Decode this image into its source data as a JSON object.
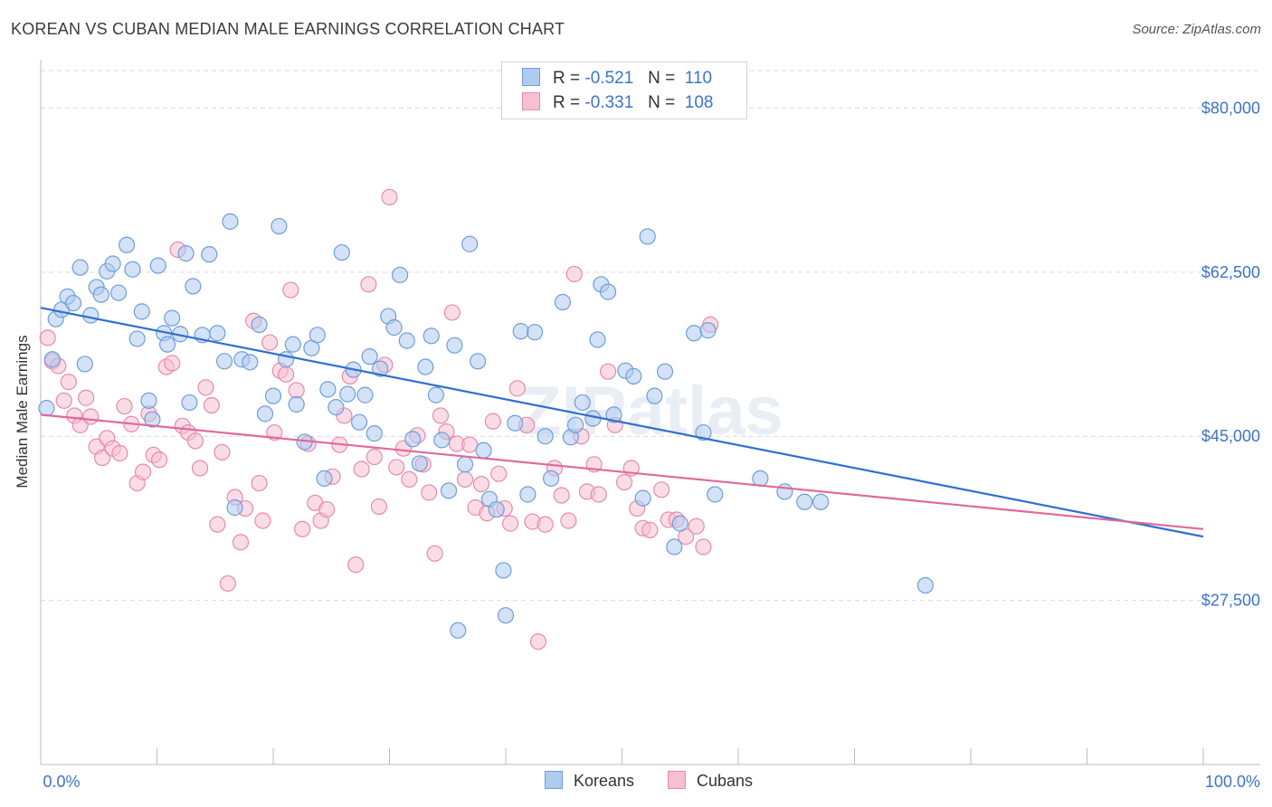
{
  "title": "KOREAN VS CUBAN MEDIAN MALE EARNINGS CORRELATION CHART",
  "source": "Source: ZipAtlas.com",
  "watermark": "ZIPatlas",
  "legend": {
    "rows": [
      {
        "r_label": "R =",
        "r_value": "-0.521",
        "n_label": "N =",
        "n_value": "110"
      },
      {
        "r_label": "R =",
        "r_value": "-0.331",
        "n_label": "N =",
        "n_value": "108"
      }
    ]
  },
  "bottom_legend": {
    "koreans": "Koreans",
    "cubans": "Cubans"
  },
  "colors": {
    "koreans_fill": "#aecbf0",
    "koreans_stroke": "#6f9ed8",
    "koreans_line": "#2f6fd1",
    "cubans_fill": "#f6c0d2",
    "cubans_stroke": "#e98aab",
    "cubans_line": "#e0689a",
    "tick_label": "#3d74c9",
    "grid": "#d9d9d9"
  },
  "chart_data": {
    "type": "scatter",
    "title": "KOREAN VS CUBAN MEDIAN MALE EARNINGS CORRELATION CHART",
    "xlabel": "",
    "ylabel": "Median Male Earnings",
    "xlim": [
      0,
      100
    ],
    "ylim": [
      10000,
      84000
    ],
    "x_tick_labels": [
      "0.0%",
      "100.0%"
    ],
    "y_ticks": [
      {
        "value": 27500,
        "label": "$27,500"
      },
      {
        "value": 45000,
        "label": "$45,000"
      },
      {
        "value": 62500,
        "label": "$62,500"
      },
      {
        "value": 80000,
        "label": "$80,000"
      }
    ],
    "grid": true,
    "legend_position": "top-center",
    "series": [
      {
        "name": "Koreans",
        "r": -0.521,
        "n": 110,
        "trend": {
          "x": [
            0,
            100
          ],
          "y": [
            58700,
            34300
          ]
        },
        "points": [
          [
            0.5,
            48000
          ],
          [
            1.0,
            53200
          ],
          [
            1.3,
            57500
          ],
          [
            1.8,
            58500
          ],
          [
            2.3,
            59900
          ],
          [
            2.8,
            59200
          ],
          [
            3.4,
            63000
          ],
          [
            3.8,
            52700
          ],
          [
            4.3,
            57900
          ],
          [
            4.8,
            60900
          ],
          [
            5.2,
            60100
          ],
          [
            5.7,
            62600
          ],
          [
            6.2,
            63400
          ],
          [
            6.7,
            60300
          ],
          [
            7.4,
            65400
          ],
          [
            7.9,
            62800
          ],
          [
            8.3,
            55400
          ],
          [
            8.7,
            58300
          ],
          [
            9.3,
            48800
          ],
          [
            9.6,
            46800
          ],
          [
            10.1,
            63200
          ],
          [
            10.6,
            56000
          ],
          [
            10.9,
            54800
          ],
          [
            11.3,
            57600
          ],
          [
            12.0,
            55900
          ],
          [
            12.5,
            64500
          ],
          [
            12.8,
            48600
          ],
          [
            13.1,
            61000
          ],
          [
            13.9,
            55800
          ],
          [
            14.5,
            64400
          ],
          [
            15.2,
            56000
          ],
          [
            15.8,
            53000
          ],
          [
            16.3,
            67900
          ],
          [
            16.7,
            37400
          ],
          [
            17.3,
            53200
          ],
          [
            18.0,
            52900
          ],
          [
            18.8,
            56900
          ],
          [
            19.3,
            47400
          ],
          [
            20.0,
            49300
          ],
          [
            20.5,
            67400
          ],
          [
            21.1,
            53200
          ],
          [
            21.7,
            54800
          ],
          [
            22.0,
            48400
          ],
          [
            22.7,
            44400
          ],
          [
            23.3,
            54400
          ],
          [
            23.8,
            55800
          ],
          [
            24.4,
            40500
          ],
          [
            24.7,
            50000
          ],
          [
            25.4,
            48100
          ],
          [
            25.9,
            64600
          ],
          [
            26.4,
            49500
          ],
          [
            26.9,
            52100
          ],
          [
            27.4,
            46500
          ],
          [
            27.9,
            49400
          ],
          [
            28.3,
            53500
          ],
          [
            28.7,
            45300
          ],
          [
            29.2,
            52200
          ],
          [
            29.9,
            57800
          ],
          [
            30.4,
            56600
          ],
          [
            30.9,
            62200
          ],
          [
            31.5,
            55200
          ],
          [
            32.0,
            44700
          ],
          [
            32.6,
            42100
          ],
          [
            33.1,
            52400
          ],
          [
            33.6,
            55700
          ],
          [
            34.0,
            49400
          ],
          [
            34.5,
            44600
          ],
          [
            35.1,
            39200
          ],
          [
            35.6,
            54700
          ],
          [
            35.9,
            24300
          ],
          [
            36.5,
            42000
          ],
          [
            36.9,
            65500
          ],
          [
            37.6,
            53000
          ],
          [
            38.1,
            43500
          ],
          [
            38.6,
            38300
          ],
          [
            39.2,
            37200
          ],
          [
            39.8,
            30700
          ],
          [
            40.0,
            25900
          ],
          [
            40.8,
            46400
          ],
          [
            41.3,
            56200
          ],
          [
            41.9,
            38800
          ],
          [
            42.5,
            56100
          ],
          [
            43.4,
            45000
          ],
          [
            43.9,
            40500
          ],
          [
            44.9,
            59300
          ],
          [
            45.6,
            44900
          ],
          [
            46.0,
            46200
          ],
          [
            46.6,
            48600
          ],
          [
            47.5,
            46900
          ],
          [
            47.9,
            55300
          ],
          [
            48.2,
            61200
          ],
          [
            48.8,
            60400
          ],
          [
            49.3,
            47300
          ],
          [
            50.3,
            52000
          ],
          [
            51.0,
            51400
          ],
          [
            51.8,
            38400
          ],
          [
            52.2,
            66300
          ],
          [
            52.8,
            49300
          ],
          [
            53.7,
            51900
          ],
          [
            54.5,
            33200
          ],
          [
            55.0,
            35700
          ],
          [
            56.2,
            56000
          ],
          [
            57.0,
            45400
          ],
          [
            57.4,
            56300
          ],
          [
            58.0,
            38800
          ],
          [
            61.9,
            40500
          ],
          [
            64.0,
            39100
          ],
          [
            65.7,
            38000
          ],
          [
            67.1,
            38000
          ],
          [
            76.1,
            29100
          ]
        ]
      },
      {
        "name": "Cubans",
        "r": -0.331,
        "n": 108,
        "trend": {
          "x": [
            0,
            100
          ],
          "y": [
            47300,
            35100
          ]
        },
        "points": [
          [
            0.6,
            55500
          ],
          [
            1.0,
            53000
          ],
          [
            1.5,
            52500
          ],
          [
            2.0,
            48800
          ],
          [
            2.4,
            50800
          ],
          [
            2.9,
            47200
          ],
          [
            3.4,
            46200
          ],
          [
            3.9,
            49100
          ],
          [
            4.3,
            47100
          ],
          [
            4.8,
            43900
          ],
          [
            5.3,
            42700
          ],
          [
            5.7,
            44800
          ],
          [
            6.2,
            43700
          ],
          [
            6.8,
            43200
          ],
          [
            7.2,
            48200
          ],
          [
            7.8,
            46300
          ],
          [
            8.3,
            40000
          ],
          [
            8.8,
            41200
          ],
          [
            9.3,
            47400
          ],
          [
            9.7,
            43000
          ],
          [
            10.2,
            42500
          ],
          [
            10.8,
            52400
          ],
          [
            11.3,
            52800
          ],
          [
            11.8,
            64900
          ],
          [
            12.2,
            46100
          ],
          [
            12.7,
            45400
          ],
          [
            13.3,
            44500
          ],
          [
            13.7,
            41600
          ],
          [
            14.2,
            50200
          ],
          [
            14.7,
            48300
          ],
          [
            15.2,
            35600
          ],
          [
            15.6,
            43300
          ],
          [
            16.1,
            29300
          ],
          [
            16.7,
            38500
          ],
          [
            17.2,
            33700
          ],
          [
            17.6,
            37300
          ],
          [
            18.3,
            57300
          ],
          [
            18.8,
            40000
          ],
          [
            19.1,
            36000
          ],
          [
            19.7,
            55000
          ],
          [
            20.1,
            45400
          ],
          [
            20.6,
            52000
          ],
          [
            21.1,
            51600
          ],
          [
            21.5,
            60600
          ],
          [
            22.0,
            49900
          ],
          [
            22.5,
            35100
          ],
          [
            23.0,
            44200
          ],
          [
            23.6,
            37900
          ],
          [
            24.1,
            36000
          ],
          [
            24.6,
            37200
          ],
          [
            25.1,
            40700
          ],
          [
            25.7,
            44100
          ],
          [
            26.1,
            47200
          ],
          [
            26.6,
            51400
          ],
          [
            27.1,
            31300
          ],
          [
            27.6,
            41500
          ],
          [
            28.2,
            61200
          ],
          [
            28.7,
            42800
          ],
          [
            29.1,
            37500
          ],
          [
            29.6,
            52600
          ],
          [
            30.0,
            70500
          ],
          [
            30.6,
            41700
          ],
          [
            31.2,
            43700
          ],
          [
            31.7,
            40400
          ],
          [
            32.4,
            45100
          ],
          [
            32.9,
            42000
          ],
          [
            33.4,
            39000
          ],
          [
            33.9,
            32500
          ],
          [
            34.4,
            47200
          ],
          [
            34.9,
            45500
          ],
          [
            35.4,
            58200
          ],
          [
            35.8,
            44200
          ],
          [
            36.5,
            40400
          ],
          [
            36.9,
            44100
          ],
          [
            37.4,
            37400
          ],
          [
            37.9,
            39900
          ],
          [
            38.4,
            36800
          ],
          [
            38.9,
            46600
          ],
          [
            39.4,
            41000
          ],
          [
            39.9,
            37300
          ],
          [
            40.4,
            35700
          ],
          [
            41.0,
            50100
          ],
          [
            41.8,
            46200
          ],
          [
            42.3,
            35900
          ],
          [
            42.8,
            23100
          ],
          [
            43.4,
            35600
          ],
          [
            44.2,
            41600
          ],
          [
            44.8,
            38700
          ],
          [
            45.4,
            36000
          ],
          [
            45.9,
            62300
          ],
          [
            46.5,
            45000
          ],
          [
            47.0,
            39100
          ],
          [
            47.6,
            42000
          ],
          [
            48.0,
            38800
          ],
          [
            48.8,
            51900
          ],
          [
            49.4,
            46200
          ],
          [
            50.2,
            40100
          ],
          [
            50.8,
            41600
          ],
          [
            51.3,
            37300
          ],
          [
            51.8,
            35200
          ],
          [
            52.4,
            35000
          ],
          [
            53.4,
            39300
          ],
          [
            54.0,
            36100
          ],
          [
            54.7,
            36100
          ],
          [
            55.5,
            34300
          ],
          [
            56.4,
            35400
          ],
          [
            57.0,
            33200
          ],
          [
            57.6,
            56900
          ]
        ]
      }
    ]
  }
}
